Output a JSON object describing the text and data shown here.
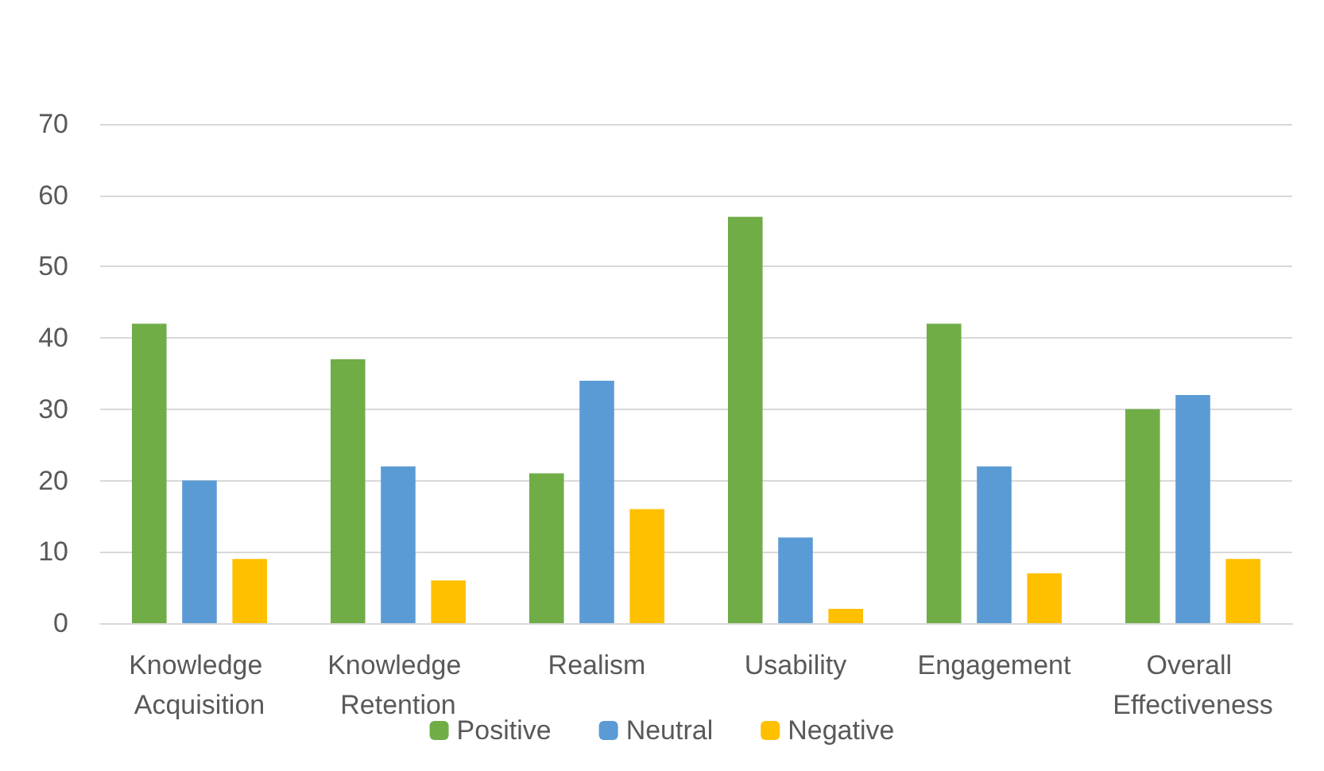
{
  "chart_data": {
    "type": "bar",
    "categories": [
      "Knowledge Acquisition",
      "Knowledge Retention",
      "Realism",
      "Usability",
      "Engagement",
      "Overall Effectiveness"
    ],
    "series": [
      {
        "name": "Positive",
        "color": "#70ad47",
        "values": [
          42,
          37,
          21,
          57,
          42,
          30
        ]
      },
      {
        "name": "Neutral",
        "color": "#5b9bd5",
        "values": [
          20,
          22,
          34,
          12,
          22,
          32
        ]
      },
      {
        "name": "Negative",
        "color": "#ffc000",
        "values": [
          9,
          6,
          16,
          2,
          7,
          9
        ]
      }
    ],
    "ylim": [
      0,
      70
    ],
    "yticks": [
      0,
      10,
      20,
      30,
      40,
      50,
      60,
      70
    ],
    "grid": "y",
    "legend": "bottom"
  }
}
